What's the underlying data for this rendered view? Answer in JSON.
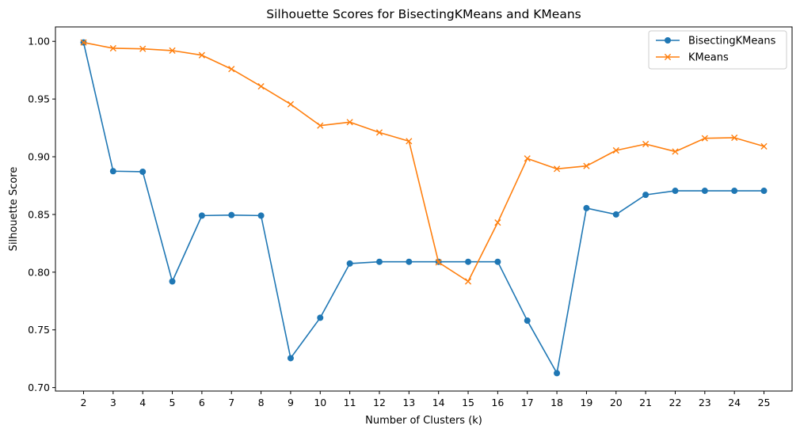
{
  "chart_data": {
    "type": "line",
    "title": "Silhouette Scores for BisectingKMeans and KMeans",
    "xlabel": "Number of Clusters (k)",
    "ylabel": "Silhouette Score",
    "x": [
      2,
      3,
      4,
      5,
      6,
      7,
      8,
      9,
      10,
      11,
      12,
      13,
      14,
      15,
      16,
      17,
      18,
      19,
      20,
      21,
      22,
      23,
      24,
      25
    ],
    "xlim": [
      1.05,
      25.95
    ],
    "ylim": [
      0.697,
      1.0125
    ],
    "yticks": [
      0.7,
      0.75,
      0.8,
      0.85,
      0.9,
      0.95,
      1.0
    ],
    "ytick_labels": [
      "0.70",
      "0.75",
      "0.80",
      "0.85",
      "0.90",
      "0.95",
      "1.00"
    ],
    "grid": false,
    "legend_position": "top-right",
    "series": [
      {
        "name": "BisectingKMeans",
        "color": "#1f77b4",
        "marker": "circle",
        "values": [
          0.999,
          0.8875,
          0.887,
          0.792,
          0.849,
          0.8495,
          0.849,
          0.7255,
          0.7605,
          0.8075,
          0.809,
          0.809,
          0.809,
          0.809,
          0.809,
          0.758,
          0.7125,
          0.8555,
          0.85,
          0.867,
          0.8705,
          0.8705,
          0.8705,
          0.8705
        ]
      },
      {
        "name": "KMeans",
        "color": "#ff7f0e",
        "marker": "x",
        "values": [
          0.999,
          0.994,
          0.9935,
          0.992,
          0.988,
          0.976,
          0.961,
          0.9455,
          0.927,
          0.93,
          0.921,
          0.9135,
          0.8085,
          0.792,
          0.843,
          0.8985,
          0.8895,
          0.892,
          0.9055,
          0.911,
          0.9045,
          0.916,
          0.9165,
          0.909
        ]
      }
    ]
  }
}
